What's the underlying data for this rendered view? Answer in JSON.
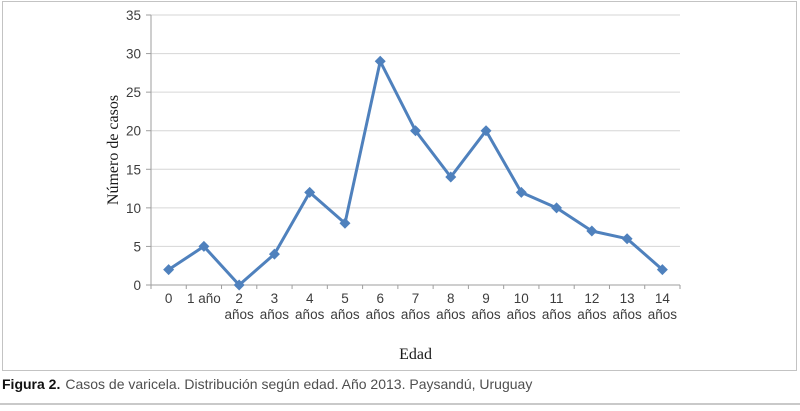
{
  "figure": {
    "caption_label": "Figura 2.",
    "caption_text": "Casos de varicela. Distribución según edad. Año 2013. Paysandú, Uruguay"
  },
  "chart_data": {
    "type": "line",
    "title": "",
    "categories": [
      "0",
      "1 año",
      "2 años",
      "3 años",
      "4 años",
      "5 años",
      "6 años",
      "7 años",
      "8 años",
      "9 años",
      "10 años",
      "11 años",
      "12 años",
      "13 años",
      "14 años"
    ],
    "x_tick_lines": [
      [
        "0"
      ],
      [
        "1 año"
      ],
      [
        "2",
        "años"
      ],
      [
        "3",
        "años"
      ],
      [
        "4",
        "años"
      ],
      [
        "5",
        "años"
      ],
      [
        "6",
        "años"
      ],
      [
        "7",
        "años"
      ],
      [
        "8",
        "años"
      ],
      [
        "9",
        "años"
      ],
      [
        "10",
        "años"
      ],
      [
        "11",
        "años"
      ],
      [
        "12",
        "años"
      ],
      [
        "13",
        "años"
      ],
      [
        "14",
        "años"
      ]
    ],
    "values": [
      2,
      5,
      0,
      4,
      12,
      8,
      29,
      20,
      14,
      20,
      12,
      10,
      7,
      6,
      2
    ],
    "xlabel": "Edad",
    "ylabel": "Número de casos",
    "ylim": [
      0,
      35
    ],
    "yticks": [
      0,
      5,
      10,
      15,
      20,
      25,
      30,
      35
    ],
    "grid": true,
    "legend": "none",
    "marker": "diamond",
    "colors": {
      "series": "#4f81bd",
      "gridline": "#d6d6d6",
      "axis": "#9e9e9e",
      "tick_label": "#3d3d3d",
      "axis_title": "#1a1a1a",
      "panel_border": "#c3c3c3",
      "divider": "#c9c9c9"
    }
  }
}
